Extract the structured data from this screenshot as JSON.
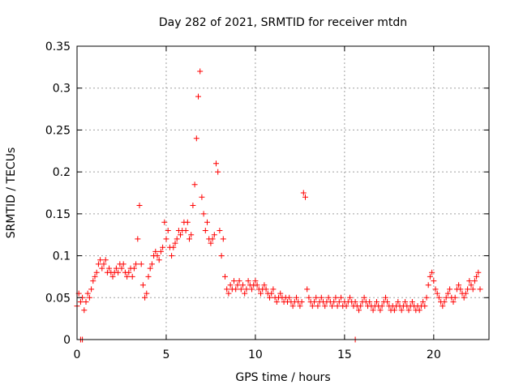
{
  "chart_data": {
    "type": "scatter",
    "title": "Day 282 of 2021, SRMTID for receiver mtdn",
    "xlabel": "GPS time / hours",
    "ylabel": "SRMTID / TECUs",
    "xlim": [
      0,
      23.1
    ],
    "ylim": [
      0,
      0.35
    ],
    "x_ticks": [
      0,
      5,
      10,
      15,
      20
    ],
    "x_tick_labels": [
      "0",
      "5",
      "10",
      "15",
      "20"
    ],
    "y_ticks": [
      0,
      0.05,
      0.1,
      0.15,
      0.2,
      0.25,
      0.3,
      0.35
    ],
    "y_tick_labels": [
      "0",
      "0.05",
      "0.1",
      "0.15",
      "0.2",
      "0.25",
      "0.3",
      "0.35"
    ],
    "grid": true,
    "legend": "none",
    "marker": "plus",
    "colors": {
      "points": "#ff0000",
      "axes": "#000000",
      "grid": "#a0a0a0"
    },
    "x_step": 0.1,
    "series": [
      {
        "name": "SRMTID",
        "x_start": 0.0,
        "values": [
          0.04,
          0.055,
          0.045,
          0.05,
          0.035,
          0.045,
          0.055,
          0.05,
          0.06,
          0.07,
          0.075,
          0.08,
          0.09,
          0.095,
          0.085,
          0.09,
          0.095,
          0.08,
          0.085,
          0.08,
          0.075,
          0.08,
          0.085,
          0.08,
          0.09,
          0.085,
          0.09,
          0.08,
          0.075,
          0.08,
          0.085,
          0.075,
          0.085,
          0.09,
          0.12,
          0.16,
          0.09,
          0.065,
          0.05,
          0.055,
          0.075,
          0.085,
          0.09,
          0.1,
          0.105,
          0.1,
          0.095,
          0.105,
          0.11,
          0.14,
          0.12,
          0.13,
          0.11,
          0.1,
          0.11,
          0.115,
          0.12,
          0.13,
          0.125,
          0.13,
          0.14,
          0.13,
          0.14,
          0.12,
          0.125,
          0.16,
          0.185,
          0.24,
          0.29,
          0.32,
          0.17,
          0.15,
          0.13,
          0.14,
          0.12,
          0.115,
          0.12,
          0.125,
          0.21,
          0.2,
          0.13,
          0.1,
          0.12,
          0.075,
          0.06,
          0.055,
          0.065,
          0.06,
          0.07,
          0.06,
          0.065,
          0.07,
          0.06,
          0.065,
          0.055,
          0.06,
          0.07,
          0.065,
          0.06,
          0.065,
          0.07,
          0.065,
          0.06,
          0.055,
          0.06,
          0.065,
          0.06,
          0.055,
          0.05,
          0.055,
          0.06,
          0.05,
          0.045,
          0.05,
          0.055,
          0.05,
          0.045,
          0.05,
          0.045,
          0.05,
          0.045,
          0.04,
          0.045,
          0.05,
          0.045,
          0.04,
          0.045,
          0.175,
          0.17,
          0.06,
          0.05,
          0.045,
          0.04,
          0.045,
          0.05,
          0.04,
          0.045,
          0.05,
          0.045,
          0.04,
          0.045,
          0.05,
          0.045,
          0.04,
          0.045,
          0.05,
          0.04,
          0.045,
          0.05,
          0.04,
          0.045,
          0.04,
          0.045,
          0.05,
          0.045,
          0.04,
          0.045,
          0.04,
          0.035,
          0.04,
          0.045,
          0.05,
          0.045,
          0.04,
          0.045,
          0.04,
          0.035,
          0.04,
          0.045,
          0.04,
          0.035,
          0.04,
          0.045,
          0.05,
          0.045,
          0.04,
          0.035,
          0.04,
          0.035,
          0.04,
          0.045,
          0.04,
          0.035,
          0.04,
          0.045,
          0.04,
          0.035,
          0.04,
          0.045,
          0.04,
          0.035,
          0.04,
          0.035,
          0.04,
          0.045,
          0.04,
          0.05,
          0.065,
          0.075,
          0.08,
          0.07,
          0.06,
          0.055,
          0.05,
          0.045,
          0.04,
          0.045,
          0.05,
          0.055,
          0.06,
          0.05,
          0.045,
          0.05,
          0.06,
          0.065,
          0.06,
          0.055,
          0.05,
          0.055,
          0.06,
          0.07,
          0.065,
          0.06,
          0.07,
          0.075,
          0.08,
          0.06
        ]
      }
    ],
    "zero_points_x": [
      0.2,
      0.3,
      15.6
    ]
  }
}
